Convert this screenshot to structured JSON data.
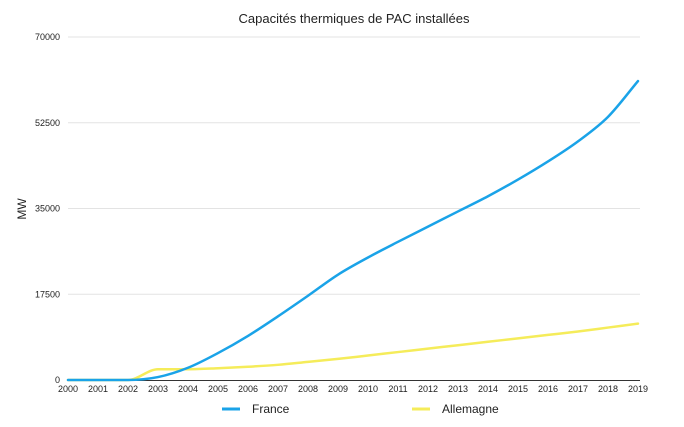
{
  "chart_data": {
    "type": "line",
    "title": "Capacités thermiques de PAC installées",
    "xlabel": "",
    "ylabel": "MW",
    "x": [
      "2000",
      "2001",
      "2002",
      "2003",
      "2004",
      "2005",
      "2006",
      "2007",
      "2008",
      "2009",
      "2010",
      "2011",
      "2012",
      "2013",
      "2014",
      "2015",
      "2016",
      "2017",
      "2018",
      "2019"
    ],
    "ylim": [
      0,
      70000
    ],
    "yticks": [
      0,
      17500,
      35000,
      52500,
      70000
    ],
    "ytick_labels": [
      "0",
      "17500",
      "35000",
      "52500",
      "70000"
    ],
    "grid": true,
    "legend_position": "bottom",
    "series": [
      {
        "name": "France",
        "color": "#1aa3e8",
        "values": [
          0,
          0,
          0,
          600,
          2500,
          5500,
          9000,
          13000,
          17200,
          21500,
          25000,
          28200,
          31300,
          34400,
          37500,
          40900,
          44600,
          48700,
          53700,
          61000
        ]
      },
      {
        "name": "Allemagne",
        "color": "#f5ec5a",
        "values": [
          0,
          0,
          0,
          2200,
          2200,
          2400,
          2700,
          3100,
          3700,
          4300,
          5000,
          5700,
          6400,
          7100,
          7800,
          8500,
          9200,
          9900,
          10700,
          11500
        ]
      }
    ]
  }
}
